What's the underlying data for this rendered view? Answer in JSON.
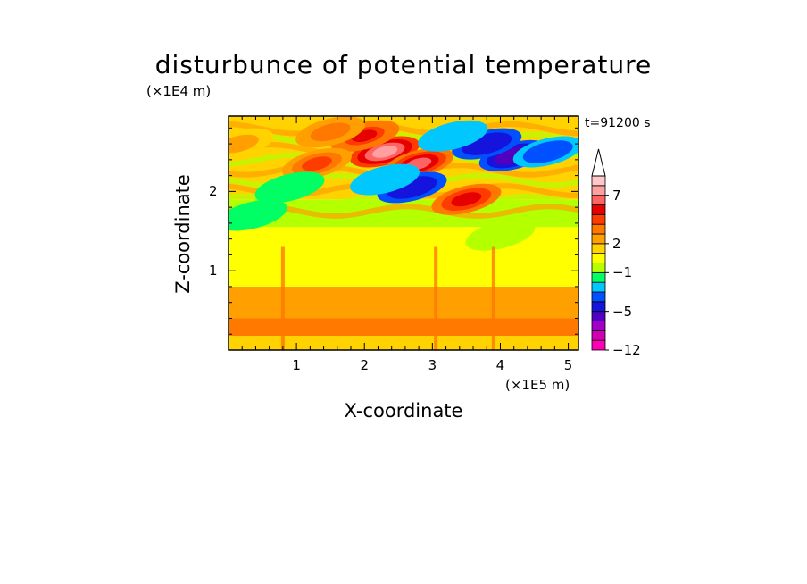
{
  "chart_data": {
    "type": "heatmap",
    "title": "disturbunce of potential temperature",
    "time_label": "t=91200 s",
    "xlabel": "X-coordinate",
    "ylabel": "Z-coordinate",
    "x_unit": "(×1E5 m)",
    "y_unit": "(×1E4 m)",
    "xlim": [
      0,
      5.15
    ],
    "ylim": [
      0,
      2.95
    ],
    "x_ticks": [
      "1",
      "2",
      "3",
      "4",
      "5"
    ],
    "y_ticks": [
      "1",
      "2"
    ],
    "colorbar": {
      "levels": [
        -12,
        -10,
        -8,
        -6,
        -5,
        -4,
        -3,
        -2,
        -1,
        0,
        1,
        2,
        3,
        4,
        5,
        6,
        7,
        8,
        9
      ],
      "tick_labels": [
        "7",
        "2",
        "−1",
        "−5",
        "−12"
      ],
      "colors": [
        "#ff00b4",
        "#d200b4",
        "#a000c8",
        "#5000be",
        "#1414dc",
        "#0050ff",
        "#00c8ff",
        "#00ff64",
        "#b4ff00",
        "#ffff00",
        "#ffd200",
        "#ffa000",
        "#ff7800",
        "#ff3c00",
        "#e60000",
        "#ff6464",
        "#ffa0a0",
        "#ffc8c8"
      ],
      "extend": "max"
    },
    "bands": [
      {
        "z_from": 0.0,
        "z_to": 0.18,
        "value": 1.5
      },
      {
        "z_from": 0.18,
        "z_to": 0.4,
        "value": 3.5
      },
      {
        "z_from": 0.4,
        "z_to": 0.8,
        "value": 2.5
      },
      {
        "z_from": 0.8,
        "z_to": 1.25,
        "value": 0.5
      },
      {
        "z_from": 1.25,
        "z_to": 1.55,
        "value": 0.5
      },
      {
        "z_from": 1.55,
        "z_to": 1.9,
        "value": -0.5
      },
      {
        "z_from": 1.9,
        "z_to": 2.95,
        "value": 1.5
      }
    ],
    "features": [
      {
        "x": 2.3,
        "z": 2.5,
        "value": 7.5
      },
      {
        "x": 2.0,
        "z": 2.7,
        "value": 5.5
      },
      {
        "x": 2.8,
        "z": 2.35,
        "value": 6
      },
      {
        "x": 3.5,
        "z": 1.9,
        "value": 5
      },
      {
        "x": 1.3,
        "z": 2.35,
        "value": 4.5
      },
      {
        "x": 4.2,
        "z": 2.45,
        "value": -6
      },
      {
        "x": 3.8,
        "z": 2.6,
        "value": -5
      },
      {
        "x": 4.7,
        "z": 2.5,
        "value": -4
      },
      {
        "x": 2.7,
        "z": 2.05,
        "value": -5
      },
      {
        "x": 2.3,
        "z": 2.15,
        "value": -3
      },
      {
        "x": 3.3,
        "z": 2.7,
        "value": -3
      },
      {
        "x": 0.9,
        "z": 2.05,
        "value": -2
      },
      {
        "x": 0.35,
        "z": 1.7,
        "value": -1.5
      },
      {
        "x": 4.0,
        "z": 1.45,
        "value": -1
      },
      {
        "x": 1.5,
        "z": 2.75,
        "value": 3
      },
      {
        "x": 0.15,
        "z": 2.6,
        "value": 2.5
      }
    ]
  }
}
